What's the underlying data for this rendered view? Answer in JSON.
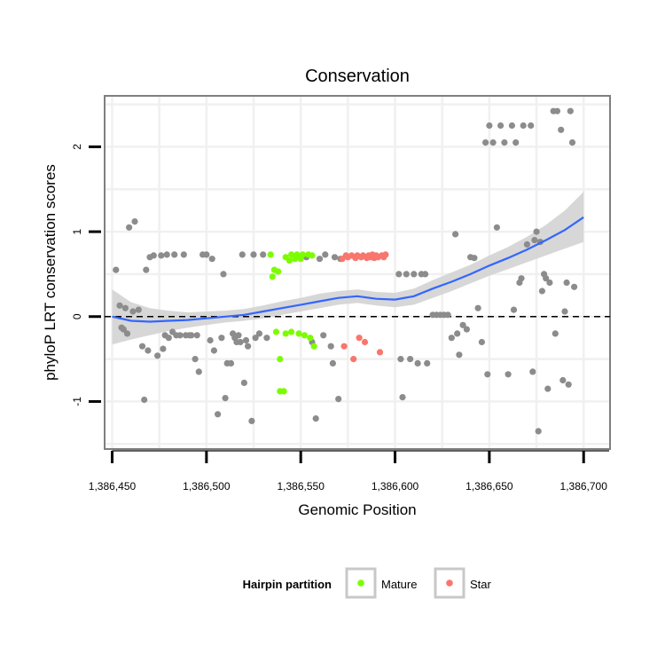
{
  "chart_data": {
    "type": "scatter",
    "title": "Conservation",
    "xlabel": "Genomic Position",
    "ylabel": "phyloP LRT conservation scores",
    "xlim": [
      1386446,
      1386714
    ],
    "ylim": [
      -1.56,
      2.6
    ],
    "x_ticks": [
      1386450,
      1386500,
      1386550,
      1386600,
      1386650,
      1386700
    ],
    "x_tick_labels": [
      "1,386,450",
      "1,386,500",
      "1,386,550",
      "1,386,600",
      "1,386,650",
      "1,386,700"
    ],
    "y_ticks": [
      -1,
      0,
      1,
      2
    ],
    "y_tick_labels": [
      "-1",
      "0",
      "1",
      "2"
    ],
    "reference_line": {
      "y": 0,
      "style": "dashed"
    },
    "grid": true,
    "legend": {
      "title": "Hairpin partition",
      "position": "bottom",
      "entries": [
        {
          "label": "Mature",
          "color": "#7cfc00"
        },
        {
          "label": "Star",
          "color": "#f8766d"
        }
      ]
    },
    "colors": {
      "other": "#8c8c8c",
      "mature": "#7cfc00",
      "star": "#f8766d",
      "smooth": "#3366ff",
      "band": "#d3d3d3"
    },
    "series": [
      {
        "name": "Other",
        "color": "#8c8c8c",
        "points": [
          [
            1386452,
            0.55
          ],
          [
            1386454,
            0.13
          ],
          [
            1386455,
            -0.13
          ],
          [
            1386456,
            -0.15
          ],
          [
            1386457,
            0.1
          ],
          [
            1386458,
            -0.2
          ],
          [
            1386459,
            1.05
          ],
          [
            1386462,
            1.12
          ],
          [
            1386461,
            0.06
          ],
          [
            1386464,
            0.08
          ],
          [
            1386466,
            -0.35
          ],
          [
            1386467,
            -0.98
          ],
          [
            1386468,
            0.55
          ],
          [
            1386469,
            -0.4
          ],
          [
            1386470,
            0.7
          ],
          [
            1386472,
            0.72
          ],
          [
            1386474,
            -0.46
          ],
          [
            1386476,
            0.72
          ],
          [
            1386477,
            -0.38
          ],
          [
            1386478,
            -0.22
          ],
          [
            1386479,
            0.73
          ],
          [
            1386480,
            -0.25
          ],
          [
            1386482,
            -0.18
          ],
          [
            1386483,
            0.73
          ],
          [
            1386484,
            -0.22
          ],
          [
            1386486,
            -0.22
          ],
          [
            1386488,
            0.73
          ],
          [
            1386489,
            -0.22
          ],
          [
            1386491,
            -0.22
          ],
          [
            1386492,
            -0.22
          ],
          [
            1386494,
            -0.5
          ],
          [
            1386495,
            -0.22
          ],
          [
            1386496,
            -0.65
          ],
          [
            1386498,
            0.73
          ],
          [
            1386500,
            0.73
          ],
          [
            1386502,
            -0.28
          ],
          [
            1386503,
            0.68
          ],
          [
            1386504,
            -0.4
          ],
          [
            1386506,
            -1.15
          ],
          [
            1386508,
            -0.25
          ],
          [
            1386509,
            0.5
          ],
          [
            1386510,
            -0.96
          ],
          [
            1386511,
            -0.55
          ],
          [
            1386513,
            -0.55
          ],
          [
            1386514,
            -0.2
          ],
          [
            1386515,
            -0.25
          ],
          [
            1386516,
            -0.3
          ],
          [
            1386517,
            -0.22
          ],
          [
            1386518,
            -0.3
          ],
          [
            1386519,
            0.73
          ],
          [
            1386520,
            -0.78
          ],
          [
            1386521,
            -0.28
          ],
          [
            1386522,
            -0.35
          ],
          [
            1386524,
            -1.23
          ],
          [
            1386525,
            0.73
          ],
          [
            1386526,
            -0.25
          ],
          [
            1386528,
            -0.2
          ],
          [
            1386530,
            0.73
          ],
          [
            1386532,
            -0.25
          ],
          [
            1386553,
            0.7
          ],
          [
            1386556,
            -0.3
          ],
          [
            1386558,
            -1.2
          ],
          [
            1386560,
            0.68
          ],
          [
            1386562,
            -0.22
          ],
          [
            1386563,
            0.73
          ],
          [
            1386566,
            -0.35
          ],
          [
            1386567,
            -0.55
          ],
          [
            1386568,
            0.7
          ],
          [
            1386570,
            -0.97
          ],
          [
            1386571,
            0.68
          ],
          [
            1386602,
            0.5
          ],
          [
            1386603,
            -0.5
          ],
          [
            1386604,
            -0.95
          ],
          [
            1386606,
            0.5
          ],
          [
            1386608,
            -0.5
          ],
          [
            1386610,
            0.5
          ],
          [
            1386612,
            -0.55
          ],
          [
            1386614,
            0.5
          ],
          [
            1386616,
            0.5
          ],
          [
            1386617,
            -0.55
          ],
          [
            1386620,
            0.02
          ],
          [
            1386622,
            0.02
          ],
          [
            1386624,
            0.02
          ],
          [
            1386626,
            0.02
          ],
          [
            1386628,
            0.02
          ],
          [
            1386630,
            -0.25
          ],
          [
            1386632,
            0.97
          ],
          [
            1386633,
            -0.2
          ],
          [
            1386634,
            -0.45
          ],
          [
            1386636,
            -0.1
          ],
          [
            1386638,
            -0.15
          ],
          [
            1386640,
            0.7
          ],
          [
            1386642,
            0.69
          ],
          [
            1386644,
            0.1
          ],
          [
            1386646,
            -0.3
          ],
          [
            1386648,
            2.05
          ],
          [
            1386649,
            -0.68
          ],
          [
            1386650,
            2.25
          ],
          [
            1386652,
            2.05
          ],
          [
            1386654,
            1.05
          ],
          [
            1386656,
            2.25
          ],
          [
            1386658,
            2.05
          ],
          [
            1386660,
            -0.68
          ],
          [
            1386662,
            2.25
          ],
          [
            1386663,
            0.08
          ],
          [
            1386664,
            2.05
          ],
          [
            1386666,
            0.4
          ],
          [
            1386667,
            0.45
          ],
          [
            1386668,
            2.25
          ],
          [
            1386670,
            0.85
          ],
          [
            1386672,
            2.25
          ],
          [
            1386673,
            -0.65
          ],
          [
            1386674,
            0.9
          ],
          [
            1386675,
            1.0
          ],
          [
            1386676,
            -1.35
          ],
          [
            1386677,
            0.88
          ],
          [
            1386678,
            0.3
          ],
          [
            1386679,
            0.5
          ],
          [
            1386680,
            0.45
          ],
          [
            1386681,
            -0.85
          ],
          [
            1386682,
            0.4
          ],
          [
            1386684,
            2.42
          ],
          [
            1386685,
            -0.2
          ],
          [
            1386686,
            2.42
          ],
          [
            1386688,
            2.2
          ],
          [
            1386689,
            -0.75
          ],
          [
            1386690,
            0.06
          ],
          [
            1386691,
            0.4
          ],
          [
            1386692,
            -0.8
          ],
          [
            1386693,
            2.42
          ],
          [
            1386694,
            2.05
          ],
          [
            1386695,
            0.35
          ]
        ]
      },
      {
        "name": "Mature",
        "color": "#7cfc00",
        "points": [
          [
            1386534,
            0.73
          ],
          [
            1386535,
            0.47
          ],
          [
            1386536,
            0.55
          ],
          [
            1386537,
            -0.18
          ],
          [
            1386538,
            0.53
          ],
          [
            1386539,
            -0.5
          ],
          [
            1386539,
            -0.88
          ],
          [
            1386541,
            -0.88
          ],
          [
            1386542,
            0.7
          ],
          [
            1386542,
            -0.2
          ],
          [
            1386544,
            0.66
          ],
          [
            1386545,
            -0.18
          ],
          [
            1386545,
            0.73
          ],
          [
            1386547,
            0.68
          ],
          [
            1386548,
            0.73
          ],
          [
            1386549,
            -0.2
          ],
          [
            1386550,
            0.68
          ],
          [
            1386551,
            0.73
          ],
          [
            1386552,
            -0.22
          ],
          [
            1386554,
            0.73
          ],
          [
            1386555,
            -0.25
          ],
          [
            1386556,
            0.72
          ],
          [
            1386557,
            -0.35
          ]
        ]
      },
      {
        "name": "Star",
        "color": "#f8766d",
        "points": [
          [
            1386572,
            0.68
          ],
          [
            1386573,
            -0.35
          ],
          [
            1386574,
            0.72
          ],
          [
            1386575,
            0.7
          ],
          [
            1386577,
            0.72
          ],
          [
            1386578,
            -0.5
          ],
          [
            1386579,
            0.69
          ],
          [
            1386580,
            0.72
          ],
          [
            1386581,
            -0.25
          ],
          [
            1386582,
            0.7
          ],
          [
            1386583,
            0.72
          ],
          [
            1386584,
            -0.3
          ],
          [
            1386585,
            0.69
          ],
          [
            1386586,
            0.72
          ],
          [
            1386587,
            0.7
          ],
          [
            1386588,
            0.73
          ],
          [
            1386589,
            0.69
          ],
          [
            1386590,
            0.72
          ],
          [
            1386591,
            0.7
          ],
          [
            1386592,
            -0.42
          ],
          [
            1386593,
            0.72
          ],
          [
            1386594,
            0.7
          ],
          [
            1386595,
            0.73
          ]
        ]
      }
    ],
    "smooth": {
      "name": "loess fit",
      "x": [
        1386450,
        1386460,
        1386470,
        1386480,
        1386490,
        1386500,
        1386510,
        1386520,
        1386530,
        1386540,
        1386550,
        1386560,
        1386570,
        1386580,
        1386590,
        1386600,
        1386610,
        1386620,
        1386630,
        1386640,
        1386650,
        1386660,
        1386670,
        1386680,
        1386690,
        1386700
      ],
      "y": [
        0.0,
        -0.05,
        -0.06,
        -0.05,
        -0.04,
        -0.02,
        0.0,
        0.02,
        0.06,
        0.1,
        0.14,
        0.18,
        0.22,
        0.24,
        0.21,
        0.2,
        0.24,
        0.33,
        0.41,
        0.5,
        0.6,
        0.69,
        0.79,
        0.9,
        1.02,
        1.17
      ],
      "lower": [
        -0.33,
        -0.27,
        -0.22,
        -0.17,
        -0.13,
        -0.1,
        -0.07,
        -0.05,
        -0.02,
        0.02,
        0.06,
        0.1,
        0.14,
        0.16,
        0.13,
        0.11,
        0.14,
        0.22,
        0.3,
        0.39,
        0.48,
        0.56,
        0.64,
        0.72,
        0.8,
        0.88
      ],
      "upper": [
        0.32,
        0.17,
        0.1,
        0.07,
        0.05,
        0.06,
        0.07,
        0.09,
        0.13,
        0.18,
        0.22,
        0.27,
        0.3,
        0.32,
        0.29,
        0.28,
        0.33,
        0.43,
        0.52,
        0.61,
        0.72,
        0.82,
        0.94,
        1.08,
        1.25,
        1.47
      ]
    }
  }
}
